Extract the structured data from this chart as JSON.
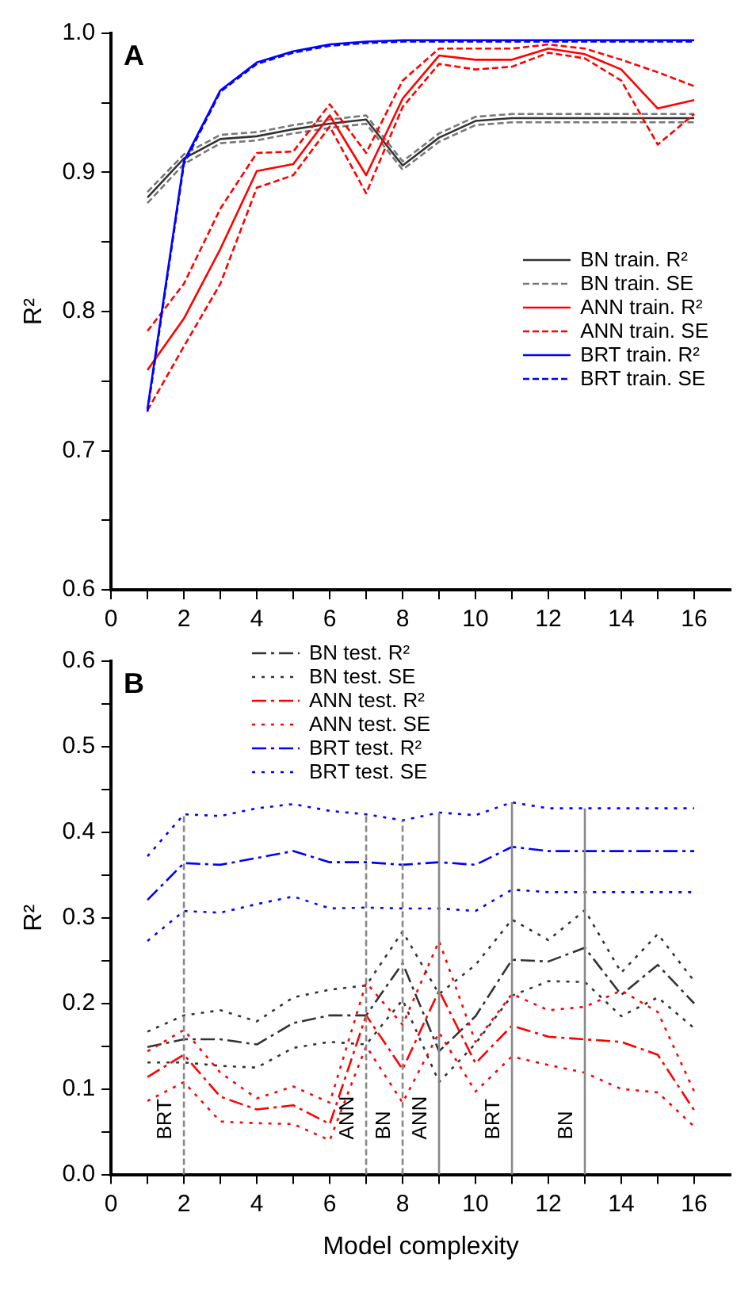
{
  "chart_data": [
    {
      "type": "line",
      "annotations": [
        "A"
      ],
      "ylabel": "R²",
      "x": [
        1,
        2,
        3,
        4,
        5,
        6,
        7,
        8,
        9,
        10,
        11,
        12,
        13,
        14,
        15,
        16
      ],
      "xlim": [
        0,
        17
      ],
      "xticks": [
        0,
        {
          "value": 1,
          "label": null
        },
        2,
        {
          "value": 3,
          "label": null
        },
        4,
        {
          "value": 5,
          "label": null
        },
        6,
        {
          "value": 7,
          "label": null
        },
        8,
        {
          "value": 9,
          "label": null
        },
        10,
        {
          "value": 11,
          "label": null
        },
        12,
        {
          "value": 13,
          "label": null
        },
        14,
        {
          "value": 15,
          "label": null
        },
        16
      ],
      "ylim": [
        0.6,
        1.0
      ],
      "yticks": [
        0.6,
        {
          "value": 0.65,
          "label": null
        },
        0.7,
        {
          "value": 0.75,
          "label": null
        },
        0.8,
        {
          "value": 0.85,
          "label": null
        },
        0.9,
        {
          "value": 0.95,
          "label": null
        },
        {
          "value": 1.0,
          "label": "1.0"
        }
      ],
      "grid": false,
      "legend": "right",
      "marker": "none",
      "series": [
        {
          "name": "BN train. R²",
          "color": "#333333",
          "line_style": "solid",
          "values": [
            0.882,
            0.91,
            0.924,
            0.926,
            0.931,
            0.935,
            0.938,
            0.905,
            0.925,
            0.937,
            0.939,
            0.939,
            0.939,
            0.939,
            0.939,
            0.939
          ]
        },
        {
          "name": "BN train. SE",
          "color": "#777777",
          "line_style": "dashed",
          "values": [
            0.878,
            0.906,
            0.921,
            0.923,
            0.928,
            0.932,
            0.935,
            0.902,
            0.922,
            0.934,
            0.936,
            0.936,
            0.936,
            0.936,
            0.936,
            0.936
          ]
        },
        {
          "color": "#777777",
          "line_style": "dashed",
          "values": [
            0.886,
            0.913,
            0.927,
            0.929,
            0.934,
            0.938,
            0.941,
            0.908,
            0.928,
            0.94,
            0.942,
            0.942,
            0.942,
            0.942,
            0.942,
            0.942
          ]
        },
        {
          "name": "ANN train. R²",
          "color": "#ff0000",
          "line_style": "solid",
          "values": [
            0.758,
            0.795,
            0.845,
            0.901,
            0.906,
            0.941,
            0.898,
            0.953,
            0.984,
            0.981,
            0.981,
            0.989,
            0.985,
            0.974,
            0.946,
            0.952
          ]
        },
        {
          "name": "ANN train. SE",
          "color": "#ff0000",
          "line_style": "dashed",
          "values": [
            0.786,
            0.82,
            0.874,
            0.914,
            0.915,
            0.949,
            0.914,
            0.966,
            0.989,
            0.989,
            0.989,
            0.992,
            0.989,
            0.981,
            0.972,
            0.962
          ]
        },
        {
          "color": "#ff0000",
          "line_style": "dashed",
          "values": [
            0.729,
            0.775,
            0.82,
            0.889,
            0.898,
            0.933,
            0.885,
            0.947,
            0.978,
            0.974,
            0.976,
            0.986,
            0.982,
            0.966,
            0.92,
            0.942
          ]
        },
        {
          "name": "BRT train. R²",
          "color": "#0000ff",
          "line_style": "solid",
          "values": [
            0.73,
            0.908,
            0.959,
            0.979,
            0.987,
            0.992,
            0.994,
            0.995,
            0.995,
            0.995,
            0.995,
            0.995,
            0.995,
            0.995,
            0.995,
            0.995
          ]
        },
        {
          "name": "BRT train. SE",
          "color": "#0000ff",
          "line_style": "dashed",
          "values": [
            0.728,
            0.906,
            0.958,
            0.978,
            0.986,
            0.991,
            0.993,
            0.994,
            0.994,
            0.994,
            0.994,
            0.994,
            0.994,
            0.994,
            0.994,
            0.994
          ]
        }
      ]
    },
    {
      "type": "line",
      "annotations": [
        "B"
      ],
      "xlabel": "Model complexity",
      "ylabel": "R²",
      "x": [
        1,
        2,
        3,
        4,
        5,
        6,
        7,
        8,
        9,
        10,
        11,
        12,
        13,
        14,
        15,
        16
      ],
      "xlim": [
        0,
        17
      ],
      "xticks": [
        0,
        {
          "value": 1,
          "label": null
        },
        2,
        {
          "value": 3,
          "label": null
        },
        4,
        {
          "value": 5,
          "label": null
        },
        6,
        {
          "value": 7,
          "label": null
        },
        8,
        {
          "value": 9,
          "label": null
        },
        10,
        {
          "value": 11,
          "label": null
        },
        12,
        {
          "value": 13,
          "label": null
        },
        14,
        {
          "value": 15,
          "label": null
        },
        16
      ],
      "ylim": [
        0,
        0.6
      ],
      "yticks": [
        {
          "value": 0,
          "label": "0.0"
        },
        {
          "value": 0.05,
          "label": null
        },
        0.1,
        {
          "value": 0.15,
          "label": null
        },
        0.2,
        {
          "value": 0.25,
          "label": null
        },
        0.3,
        {
          "value": 0.35,
          "label": null
        },
        0.4,
        {
          "value": 0.45,
          "label": null
        },
        0.5,
        {
          "value": 0.55,
          "label": null
        },
        0.6
      ],
      "grid": false,
      "legend": "top",
      "marker": "none",
      "series": [
        {
          "name": "BN test. R²",
          "color": "#333333",
          "line_style": "dashdot",
          "values": [
            0.149,
            0.158,
            0.158,
            0.152,
            0.177,
            0.186,
            0.186,
            0.247,
            0.144,
            0.185,
            0.251,
            0.249,
            0.265,
            0.21,
            0.245,
            0.2
          ]
        },
        {
          "name": "BN test. SE",
          "color": "#333333",
          "line_style": "dotted",
          "values": [
            0.167,
            0.186,
            0.192,
            0.179,
            0.207,
            0.216,
            0.221,
            0.284,
            0.211,
            0.245,
            0.298,
            0.274,
            0.309,
            0.236,
            0.281,
            0.226
          ]
        },
        {
          "color": "#333333",
          "line_style": "dotted",
          "values": [
            0.131,
            0.131,
            0.127,
            0.125,
            0.148,
            0.155,
            0.152,
            0.204,
            0.108,
            0.153,
            0.209,
            0.226,
            0.225,
            0.185,
            0.207,
            0.171
          ]
        },
        {
          "name": "ANN test. R²",
          "color": "#ff0000",
          "line_style": "dashdot",
          "values": [
            0.114,
            0.14,
            0.091,
            0.076,
            0.081,
            0.059,
            0.186,
            0.123,
            0.215,
            0.13,
            0.174,
            0.161,
            0.158,
            0.155,
            0.14,
            0.075
          ]
        },
        {
          "name": "ANN test. SE",
          "color": "#ff0000",
          "line_style": "dotted",
          "values": [
            0.144,
            0.169,
            0.119,
            0.089,
            0.103,
            0.084,
            0.224,
            0.175,
            0.273,
            0.155,
            0.211,
            0.192,
            0.196,
            0.215,
            0.19,
            0.097
          ]
        },
        {
          "color": "#ff0000",
          "line_style": "dotted",
          "values": [
            0.086,
            0.108,
            0.062,
            0.06,
            0.059,
            0.04,
            0.15,
            0.084,
            0.166,
            0.097,
            0.138,
            0.128,
            0.119,
            0.1,
            0.096,
            0.056
          ]
        },
        {
          "name": "BRT test. R²",
          "color": "#0000ff",
          "line_style": "dashdot",
          "values": [
            0.321,
            0.364,
            0.362,
            0.37,
            0.378,
            0.365,
            0.365,
            0.362,
            0.365,
            0.362,
            0.383,
            0.378,
            0.378,
            0.378,
            0.378,
            0.378
          ]
        },
        {
          "name": "BRT test. SE",
          "color": "#0000ff",
          "line_style": "dotted",
          "values": [
            0.372,
            0.421,
            0.419,
            0.428,
            0.433,
            0.425,
            0.421,
            0.414,
            0.423,
            0.42,
            0.435,
            0.428,
            0.428,
            0.428,
            0.428,
            0.428
          ]
        },
        {
          "color": "#0000ff",
          "line_style": "dotted",
          "values": [
            0.273,
            0.308,
            0.306,
            0.316,
            0.325,
            0.311,
            0.312,
            0.311,
            0.311,
            0.308,
            0.333,
            0.33,
            0.33,
            0.33,
            0.33,
            0.33
          ]
        }
      ],
      "ref_lines": [
        {
          "axis": "x",
          "value": 2,
          "label": "BRT",
          "color": "#888888",
          "line_style": "dashed"
        },
        {
          "axis": "x",
          "value": 7,
          "label": "ANN",
          "color": "#888888",
          "line_style": "dashed"
        },
        {
          "axis": "x",
          "value": 8,
          "label": "BN",
          "color": "#888888",
          "line_style": "dashed"
        },
        {
          "axis": "x",
          "value": 9,
          "label": "ANN",
          "color": "#888888",
          "line_style": "solid"
        },
        {
          "axis": "x",
          "value": 11,
          "label": "BRT",
          "color": "#888888",
          "line_style": "solid"
        },
        {
          "axis": "x",
          "value": 13,
          "label": "BN",
          "color": "#888888",
          "line_style": "solid"
        }
      ]
    }
  ]
}
